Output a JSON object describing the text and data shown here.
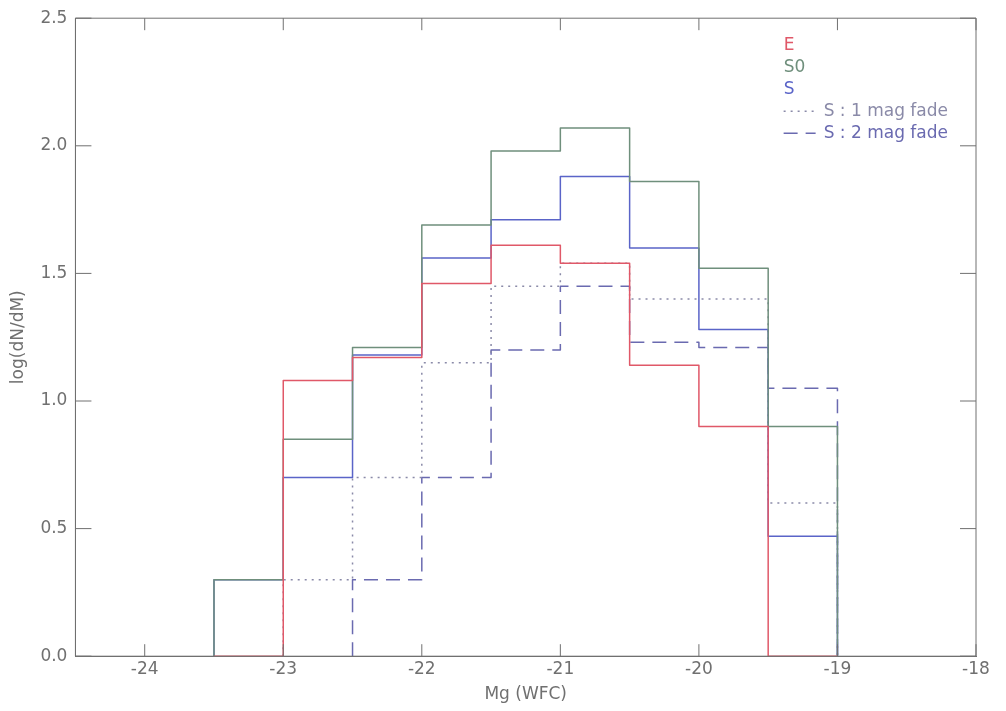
{
  "chart_data": {
    "type": "histogram",
    "xlabel": "Mg (WFC)",
    "ylabel": "log(dN/dM)",
    "bins": [
      -23.5,
      -23,
      -22.5,
      -22,
      -21.5,
      -21,
      -20.5,
      -20,
      -19.5,
      -19
    ],
    "series": [
      {
        "name": "E",
        "color": "#e05868",
        "values": [
          0,
          1.08,
          1.17,
          1.46,
          1.61,
          1.54,
          1.14,
          0.9,
          0
        ]
      },
      {
        "name": "S0",
        "color": "#6f8f7c",
        "values": [
          0.3,
          0.85,
          1.21,
          1.69,
          1.98,
          2.07,
          1.86,
          1.52,
          0.9
        ]
      },
      {
        "name": "S",
        "color": "#5a64c8",
        "values": [
          0.3,
          0.7,
          1.18,
          1.56,
          1.71,
          1.88,
          1.6,
          1.28,
          0.47
        ]
      },
      {
        "name": "S : 1 mag fade",
        "color": "#8a8aa8",
        "line_style": "dotted",
        "bins": [
          -23,
          -22.5,
          -22,
          -21.5,
          -21,
          -20.5,
          -20,
          -19.5,
          -19
        ],
        "values": [
          0.3,
          0.7,
          1.15,
          1.45,
          1.54,
          1.4,
          1.4,
          0.6
        ]
      },
      {
        "name": "S : 2 mag fade",
        "color": "#6a6ab0",
        "line_style": "dashed",
        "bins": [
          -22.5,
          -22,
          -21.5,
          -21,
          -20.5,
          -20,
          -19.5,
          -19
        ],
        "values": [
          0.3,
          0.7,
          1.2,
          1.45,
          1.23,
          1.21,
          1.05
        ]
      }
    ],
    "xlim": [
      -24.5,
      -18
    ],
    "xticks": [
      -24,
      -23,
      -22,
      -21,
      -20,
      -19,
      -18
    ],
    "ylim": [
      0,
      2.5
    ],
    "yticks": [
      {
        "value": 0,
        "label": "0.0"
      },
      {
        "value": 0.5,
        "label": "0.5"
      },
      {
        "value": 1,
        "label": "1.0"
      },
      {
        "value": 1.5,
        "label": "1.5"
      },
      {
        "value": 2,
        "label": "2.0"
      },
      {
        "value": 2.5,
        "label": "2.5"
      }
    ],
    "legend": "top right",
    "grid": false
  }
}
